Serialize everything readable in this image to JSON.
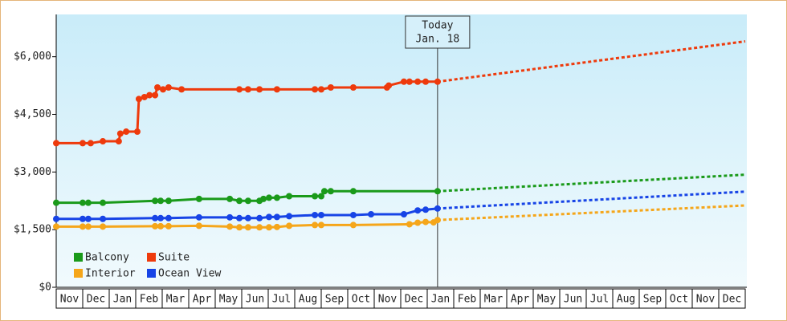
{
  "chart_data": {
    "type": "line",
    "xlim": [
      0,
      26
    ],
    "xticks": [
      {
        "value": 0.5,
        "label": "Nov"
      },
      {
        "value": 1.5,
        "label": "Dec"
      },
      {
        "value": 2.5,
        "label": "Jan"
      },
      {
        "value": 3.5,
        "label": "Feb"
      },
      {
        "value": 4.5,
        "label": "Mar"
      },
      {
        "value": 5.5,
        "label": "Apr"
      },
      {
        "value": 6.5,
        "label": "May"
      },
      {
        "value": 7.5,
        "label": "Jun"
      },
      {
        "value": 8.5,
        "label": "Jul"
      },
      {
        "value": 9.5,
        "label": "Aug"
      },
      {
        "value": 10.5,
        "label": "Sep"
      },
      {
        "value": 11.5,
        "label": "Oct"
      },
      {
        "value": 12.5,
        "label": "Nov"
      },
      {
        "value": 13.5,
        "label": "Dec"
      },
      {
        "value": 14.5,
        "label": "Jan"
      },
      {
        "value": 15.5,
        "label": "Feb"
      },
      {
        "value": 16.5,
        "label": "Mar"
      },
      {
        "value": 17.5,
        "label": "Apr"
      },
      {
        "value": 18.5,
        "label": "May"
      },
      {
        "value": 19.5,
        "label": "Jun"
      },
      {
        "value": 20.5,
        "label": "Jul"
      },
      {
        "value": 21.5,
        "label": "Aug"
      },
      {
        "value": 22.5,
        "label": "Sep"
      },
      {
        "value": 23.5,
        "label": "Oct"
      },
      {
        "value": 24.5,
        "label": "Nov"
      },
      {
        "value": 25.5,
        "label": "Dec"
      }
    ],
    "ylim": [
      0,
      7100
    ],
    "yticks": [
      {
        "value": 0,
        "label": "$0"
      },
      {
        "value": 1500,
        "label": "$1,500"
      },
      {
        "value": 3000,
        "label": "$3,000"
      },
      {
        "value": 4500,
        "label": "$4,500"
      },
      {
        "value": 6000,
        "label": "$6,000"
      }
    ],
    "legend": "lower left",
    "annotation": {
      "x": 14.39,
      "lines": [
        "Today",
        "Jan. 18"
      ]
    },
    "series": [
      {
        "name": "Balcony",
        "color": "#1a9a1a",
        "x": [
          0,
          1.0,
          1.21,
          1.76,
          3.73,
          3.94,
          4.24,
          5.39,
          6.55,
          6.91,
          7.24,
          7.67,
          7.82,
          8.03,
          8.33,
          8.79,
          9.76,
          10.0,
          10.12,
          10.36,
          11.21,
          14.39
        ],
        "values": [
          2200,
          2200,
          2200,
          2200,
          2250,
          2250,
          2250,
          2300,
          2300,
          2250,
          2250,
          2250,
          2300,
          2330,
          2330,
          2370,
          2370,
          2370,
          2500,
          2500,
          2500,
          2500
        ],
        "forecast_x": [
          14.39,
          26
        ],
        "forecast_values": [
          2500,
          2930
        ]
      },
      {
        "name": "Suite",
        "color": "#ee3a0c",
        "x": [
          0,
          1.0,
          1.3,
          1.76,
          2.36,
          2.42,
          2.64,
          3.06,
          3.12,
          3.33,
          3.52,
          3.73,
          3.82,
          4.03,
          4.24,
          4.73,
          6.91,
          7.24,
          7.67,
          8.33,
          9.76,
          10.0,
          10.36,
          11.21,
          12.48,
          12.55,
          13.12,
          13.33,
          13.64,
          13.94,
          14.39
        ],
        "values": [
          3750,
          3750,
          3750,
          3800,
          3800,
          4000,
          4050,
          4050,
          4900,
          4950,
          5000,
          5000,
          5200,
          5150,
          5200,
          5150,
          5150,
          5150,
          5150,
          5150,
          5150,
          5150,
          5200,
          5200,
          5200,
          5250,
          5350,
          5350,
          5350,
          5350,
          5350
        ],
        "forecast_x": [
          14.39,
          26
        ],
        "forecast_values": [
          5350,
          6400
        ]
      },
      {
        "name": "Interior",
        "color": "#f5a61a",
        "x": [
          0,
          1.0,
          1.21,
          1.76,
          3.73,
          3.94,
          4.24,
          5.39,
          6.55,
          6.91,
          7.24,
          7.67,
          8.03,
          8.33,
          8.79,
          9.76,
          10.0,
          11.21,
          13.33,
          13.64,
          13.94,
          14.24,
          14.39
        ],
        "values": [
          1580,
          1580,
          1580,
          1580,
          1590,
          1590,
          1590,
          1600,
          1580,
          1560,
          1560,
          1560,
          1560,
          1570,
          1600,
          1620,
          1620,
          1620,
          1640,
          1680,
          1700,
          1690,
          1750
        ],
        "forecast_x": [
          14.39,
          26
        ],
        "forecast_values": [
          1750,
          2130
        ]
      },
      {
        "name": "Ocean View",
        "color": "#1744e6",
        "x": [
          0,
          1.0,
          1.21,
          1.76,
          3.73,
          3.94,
          4.24,
          5.39,
          6.55,
          6.91,
          7.24,
          7.67,
          8.03,
          8.33,
          8.79,
          9.76,
          10.0,
          11.21,
          11.88,
          13.12,
          13.64,
          13.94,
          14.39
        ],
        "values": [
          1780,
          1780,
          1780,
          1780,
          1800,
          1800,
          1800,
          1820,
          1820,
          1800,
          1800,
          1800,
          1830,
          1830,
          1850,
          1880,
          1880,
          1880,
          1900,
          1900,
          2000,
          2020,
          2050
        ],
        "forecast_x": [
          14.39,
          26
        ],
        "forecast_values": [
          2050,
          2490
        ]
      }
    ]
  }
}
